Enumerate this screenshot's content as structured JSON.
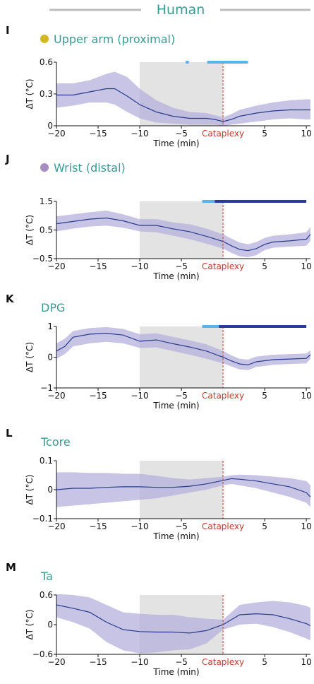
{
  "header": {
    "title": "Human",
    "rule_color": "#bdbdbd"
  },
  "colors": {
    "band": "#b4b0dc",
    "line": "#283c8c",
    "shade": "#e3e3e3",
    "marker_light": "#5ab4e6",
    "marker_dark": "#283c9a",
    "cataplexy": "#c83a2a",
    "title": "#3a9a94"
  },
  "chart_data": [
    {
      "type": "area",
      "panel_letter": "I",
      "title": "Upper arm (proximal)",
      "dot_color": "#d4b820",
      "xlabel": "Time (min)",
      "ylabel": "ΔT (°C)",
      "xlim": [
        -20,
        10.5
      ],
      "ylim": [
        0,
        0.6
      ],
      "yticks": [
        "0",
        "0.3",
        "0.6"
      ],
      "ytick_values": [
        0,
        0.3,
        0.6
      ],
      "xticks": [
        "−20",
        "−15",
        "−10",
        "−5",
        "Cataplexy",
        "5",
        "10"
      ],
      "xtick_values": [
        -20,
        -15,
        -10,
        -5,
        0,
        5,
        10
      ],
      "shaded_range": [
        -10,
        0
      ],
      "markers": [
        {
          "start": -4.5,
          "end": -4.1,
          "color": "light"
        },
        {
          "start": -1.9,
          "end": 3.0,
          "color": "light"
        }
      ],
      "x": [
        -20,
        -18,
        -16,
        -14,
        -13,
        -11.5,
        -10,
        -8,
        -6,
        -4,
        -2,
        -1,
        0,
        1,
        2,
        4,
        6,
        8,
        10,
        10.5
      ],
      "y": [
        0.29,
        0.29,
        0.32,
        0.35,
        0.35,
        0.28,
        0.2,
        0.13,
        0.09,
        0.07,
        0.07,
        0.06,
        0.04,
        0.06,
        0.09,
        0.12,
        0.14,
        0.15,
        0.15,
        0.15
      ],
      "lower": [
        0.17,
        0.19,
        0.22,
        0.22,
        0.2,
        0.13,
        0.07,
        0.03,
        0.02,
        0.01,
        0.01,
        0.01,
        0.0,
        0.01,
        0.02,
        0.04,
        0.06,
        0.07,
        0.06,
        0.06
      ],
      "upper": [
        0.4,
        0.4,
        0.43,
        0.49,
        0.51,
        0.46,
        0.35,
        0.24,
        0.17,
        0.13,
        0.12,
        0.1,
        0.08,
        0.11,
        0.15,
        0.19,
        0.22,
        0.24,
        0.25,
        0.25
      ]
    },
    {
      "type": "area",
      "panel_letter": "J",
      "title": "Wrist (distal)",
      "dot_color": "#a68dbf",
      "xlabel": "Time (min)",
      "ylabel": "ΔT (°C)",
      "xlim": [
        -20,
        10.5
      ],
      "ylim": [
        -0.5,
        1.5
      ],
      "yticks": [
        "−0.5",
        "0.5",
        "1.5"
      ],
      "ytick_values": [
        -0.5,
        0.5,
        1.5
      ],
      "xticks": [
        "−20",
        "−15",
        "−10",
        "−5",
        "Cataplexy",
        "5",
        "10"
      ],
      "xtick_values": [
        -20,
        -15,
        -10,
        -5,
        0,
        5,
        10
      ],
      "shaded_range": [
        -10,
        0
      ],
      "markers": [
        {
          "start": -2.5,
          "end": -1.0,
          "color": "light"
        },
        {
          "start": -1.0,
          "end": 10.0,
          "color": "dark"
        }
      ],
      "x": [
        -20,
        -18,
        -16,
        -14,
        -12,
        -10,
        -8,
        -6,
        -4,
        -2,
        0,
        1,
        2,
        3,
        4,
        5,
        6,
        8,
        10,
        10.5
      ],
      "y": [
        0.72,
        0.8,
        0.88,
        0.92,
        0.82,
        0.66,
        0.66,
        0.54,
        0.44,
        0.28,
        0.1,
        -0.05,
        -0.18,
        -0.22,
        -0.15,
        0.0,
        0.08,
        0.12,
        0.18,
        0.35
      ],
      "lower": [
        0.45,
        0.55,
        0.62,
        0.65,
        0.58,
        0.45,
        0.42,
        0.3,
        0.18,
        0.02,
        -0.15,
        -0.3,
        -0.42,
        -0.45,
        -0.38,
        -0.2,
        -0.12,
        -0.08,
        -0.05,
        0.12
      ],
      "upper": [
        0.98,
        1.05,
        1.12,
        1.18,
        1.05,
        0.88,
        0.88,
        0.77,
        0.7,
        0.55,
        0.35,
        0.2,
        0.06,
        0.0,
        0.08,
        0.22,
        0.3,
        0.35,
        0.42,
        0.6
      ]
    },
    {
      "type": "area",
      "panel_letter": "K",
      "title": "DPG",
      "dot_color": "",
      "xlabel": "Time (min)",
      "ylabel": "ΔT (°C)",
      "xlim": [
        -20,
        10.5
      ],
      "ylim": [
        -1,
        1
      ],
      "yticks": [
        "−1",
        "0",
        "1"
      ],
      "ytick_values": [
        -1,
        0,
        1
      ],
      "xticks": [
        "−20",
        "−15",
        "−10",
        "−5",
        "Cataplexy",
        "5",
        "10"
      ],
      "xtick_values": [
        -20,
        -15,
        -10,
        -5,
        0,
        5,
        10
      ],
      "shaded_range": [
        -10,
        0
      ],
      "markers": [
        {
          "start": -2.5,
          "end": -0.5,
          "color": "light"
        },
        {
          "start": -0.5,
          "end": 10.0,
          "color": "dark"
        }
      ],
      "x": [
        -20,
        -19,
        -18,
        -16,
        -14,
        -12,
        -10,
        -8,
        -6,
        -4,
        -2,
        0,
        1,
        2,
        3,
        4,
        6,
        8,
        10,
        10.5
      ],
      "y": [
        0.2,
        0.35,
        0.65,
        0.75,
        0.78,
        0.72,
        0.52,
        0.56,
        0.44,
        0.33,
        0.2,
        0.0,
        -0.12,
        -0.22,
        -0.25,
        -0.15,
        -0.08,
        -0.06,
        -0.04,
        0.08
      ],
      "lower": [
        -0.05,
        0.1,
        0.35,
        0.45,
        0.5,
        0.45,
        0.3,
        0.32,
        0.2,
        0.08,
        -0.05,
        -0.2,
        -0.3,
        -0.4,
        -0.42,
        -0.32,
        -0.25,
        -0.22,
        -0.2,
        -0.05
      ],
      "upper": [
        0.45,
        0.6,
        0.85,
        0.95,
        0.98,
        0.92,
        0.75,
        0.78,
        0.66,
        0.55,
        0.42,
        0.2,
        0.06,
        -0.05,
        -0.08,
        0.02,
        0.08,
        0.1,
        0.12,
        0.22
      ]
    },
    {
      "type": "area",
      "panel_letter": "L",
      "title": "Tcore",
      "dot_color": "",
      "xlabel": "Time (min)",
      "ylabel": "ΔT (°C)",
      "xlim": [
        -20,
        10.5
      ],
      "ylim": [
        -0.1,
        0.1
      ],
      "yticks": [
        "−0.1",
        "0",
        "0.1"
      ],
      "ytick_values": [
        -0.1,
        0,
        0.1
      ],
      "xticks": [
        "−20",
        "−15",
        "−10",
        "−5",
        "Cataplexy",
        "5",
        "10"
      ],
      "xtick_values": [
        -20,
        -15,
        -10,
        -5,
        0,
        5,
        10
      ],
      "shaded_range": [
        -10,
        0
      ],
      "markers": [],
      "x": [
        -20,
        -18,
        -16,
        -14,
        -12,
        -10,
        -8,
        -6,
        -4,
        -2,
        0,
        1,
        2,
        4,
        6,
        8,
        10,
        10.5
      ],
      "y": [
        0.0,
        0.005,
        0.005,
        0.008,
        0.01,
        0.01,
        0.008,
        0.008,
        0.012,
        0.02,
        0.032,
        0.038,
        0.036,
        0.03,
        0.02,
        0.01,
        -0.01,
        -0.025
      ],
      "lower": [
        -0.06,
        -0.055,
        -0.05,
        -0.045,
        -0.04,
        -0.035,
        -0.03,
        -0.02,
        -0.01,
        0.0,
        0.015,
        0.02,
        0.015,
        0.005,
        -0.01,
        -0.025,
        -0.045,
        -0.06
      ],
      "upper": [
        0.06,
        0.06,
        0.058,
        0.058,
        0.055,
        0.055,
        0.048,
        0.04,
        0.035,
        0.04,
        0.045,
        0.05,
        0.052,
        0.05,
        0.045,
        0.04,
        0.03,
        0.015
      ]
    },
    {
      "type": "area",
      "panel_letter": "M",
      "title": "Ta",
      "dot_color": "",
      "xlabel": "Time (min)",
      "ylabel": "ΔT (°C)",
      "xlim": [
        -20,
        10.5
      ],
      "ylim": [
        -0.6,
        0.6
      ],
      "yticks": [
        "−0.6",
        "0",
        "0.6"
      ],
      "ytick_values": [
        -0.6,
        0,
        0.6
      ],
      "xticks": [
        "−20",
        "−15",
        "−10",
        "−5",
        "Cataplexy",
        "5",
        "10"
      ],
      "xtick_values": [
        -20,
        -15,
        -10,
        -5,
        0,
        5,
        10
      ],
      "shaded_range": [
        -10,
        0
      ],
      "markers": [],
      "x": [
        -20,
        -18,
        -16,
        -14,
        -12,
        -10,
        -8,
        -6,
        -4,
        -2,
        0,
        1,
        2,
        4,
        6,
        8,
        10,
        10.5
      ],
      "y": [
        0.4,
        0.33,
        0.25,
        0.05,
        -0.1,
        -0.14,
        -0.15,
        -0.15,
        -0.17,
        -0.12,
        0.0,
        0.1,
        0.2,
        0.22,
        0.2,
        0.12,
        0.02,
        -0.02
      ],
      "lower": [
        0.15,
        0.05,
        -0.08,
        -0.35,
        -0.52,
        -0.58,
        -0.56,
        -0.52,
        -0.5,
        -0.38,
        -0.1,
        -0.05,
        0.0,
        0.02,
        -0.05,
        -0.15,
        -0.28,
        -0.32
      ],
      "upper": [
        0.62,
        0.6,
        0.55,
        0.4,
        0.25,
        0.22,
        0.2,
        0.2,
        0.15,
        0.12,
        0.1,
        0.25,
        0.4,
        0.45,
        0.48,
        0.45,
        0.38,
        0.34
      ]
    }
  ]
}
